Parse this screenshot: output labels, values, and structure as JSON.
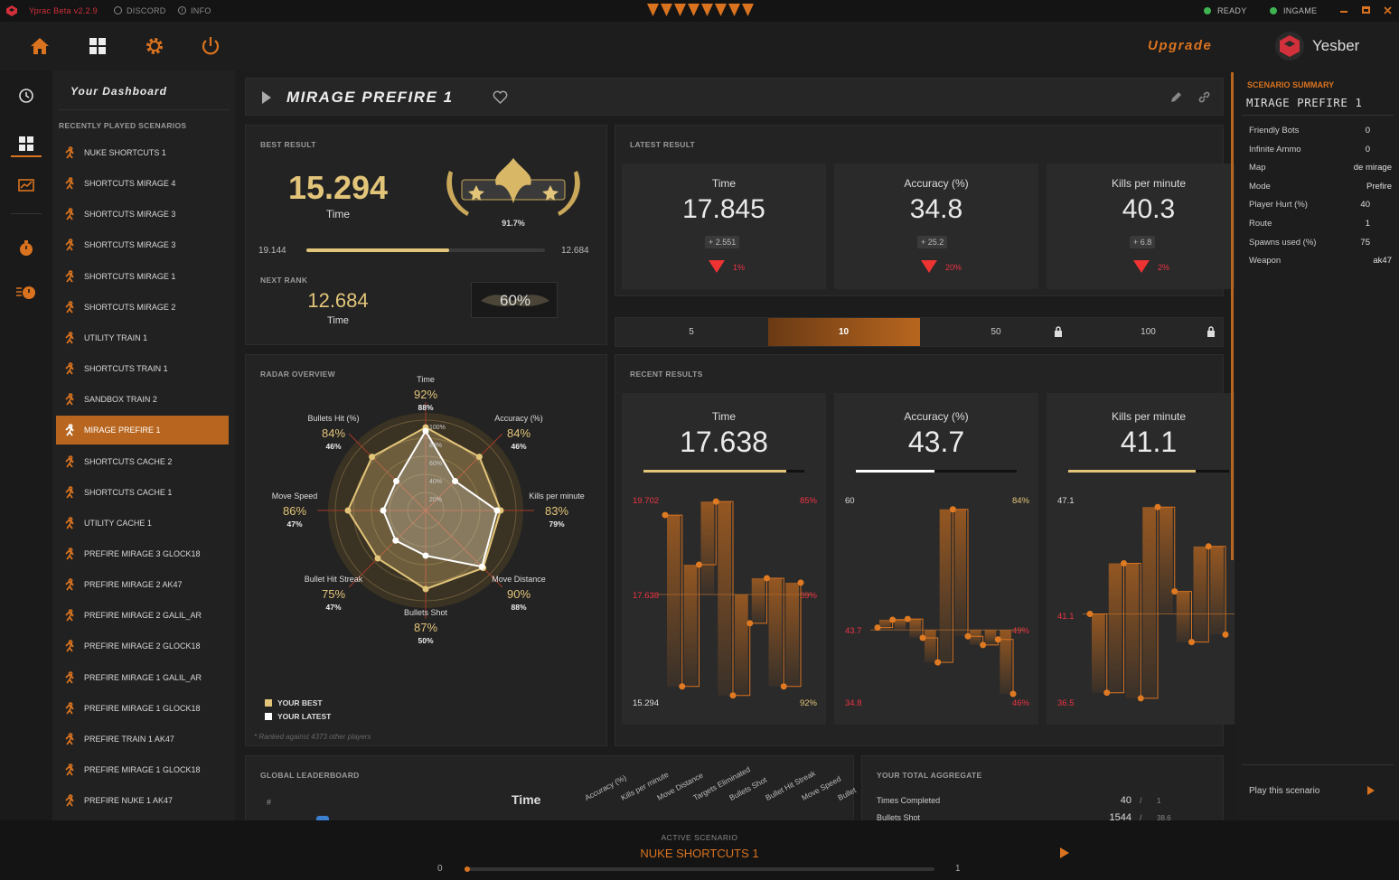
{
  "titlebar": {
    "app": "Yprac Beta v2.2.9",
    "discord": "DISCORD",
    "info": "INFO",
    "ready": "READY",
    "ingame": "INGAME"
  },
  "topnav": {
    "upgrade": "Upgrade",
    "username": "Yesber"
  },
  "sidebar": {
    "title": "Your Dashboard",
    "recent_title": "RECENTLY PLAYED SCENARIOS",
    "items": [
      "NUKE SHORTCUTS 1",
      "SHORTCUTS MIRAGE 4",
      "SHORTCUTS MIRAGE 3",
      "SHORTCUTS MIRAGE 3",
      "SHORTCUTS MIRAGE 1",
      "SHORTCUTS MIRAGE 2",
      "UTILITY TRAIN 1",
      "SHORTCUTS TRAIN 1",
      "SANDBOX TRAIN 2",
      "MIRAGE PREFIRE 1",
      "SHORTCUTS CACHE 2",
      "SHORTCUTS CACHE 1",
      "UTILITY CACHE 1",
      "PREFIRE MIRAGE 3 GLOCK18",
      "PREFIRE MIRAGE 2 AK47",
      "PREFIRE MIRAGE 2 GALIL_AR",
      "PREFIRE MIRAGE 2 GLOCK18",
      "PREFIRE MIRAGE 1 GALIL_AR",
      "PREFIRE MIRAGE 1 GLOCK18",
      "PREFIRE TRAIN 1 AK47",
      "PREFIRE MIRAGE 1 GLOCK18",
      "PREFIRE NUKE 1 AK47"
    ],
    "active_index": 9
  },
  "header": {
    "title": "MIRAGE PREFIRE 1"
  },
  "best": {
    "title": "BEST RESULT",
    "value": "15.294",
    "label": "Time",
    "badge_pct": "91.7%",
    "range_left": "19.144",
    "range_right": "12.684",
    "progress": 0.6,
    "next_rank_title": "NEXT RANK",
    "next_value": "12.684",
    "next_label": "Time",
    "next_pct": "60%"
  },
  "latest": {
    "title": "LATEST RESULT",
    "cards": [
      {
        "label": "Time",
        "value": "17.845",
        "delta": "+ 2.551",
        "pct": "1%"
      },
      {
        "label": "Accuracy (%)",
        "value": "34.8",
        "delta": "+ 25.2",
        "pct": "20%"
      },
      {
        "label": "Kills per minute",
        "value": "40.3",
        "delta": "+ 6.8",
        "pct": "2%"
      }
    ]
  },
  "tabs": {
    "items": [
      "5",
      "10",
      "50",
      "100"
    ],
    "active_index": 1
  },
  "radar": {
    "title": "RADAR OVERVIEW",
    "ring_labels": [
      "100%",
      "80%",
      "60%",
      "40%",
      "20%"
    ],
    "axes": [
      {
        "name": "Time",
        "best": "92%",
        "latest": "88%"
      },
      {
        "name": "Accuracy (%)",
        "best": "84%",
        "latest": "46%"
      },
      {
        "name": "Kills per minute",
        "best": "83%",
        "latest": "79%"
      },
      {
        "name": "Move Distance",
        "best": "90%",
        "latest": "88%"
      },
      {
        "name": "Bullets Shot",
        "best": "87%",
        "latest": "50%"
      },
      {
        "name": "Bullet Hit Streak",
        "best": "75%",
        "latest": "47%"
      },
      {
        "name": "Move Speed",
        "best": "86%",
        "latest": "47%"
      },
      {
        "name": "Bullets Hit (%)",
        "best": "84%",
        "latest": "46%"
      }
    ],
    "best_values": [
      0.92,
      0.84,
      0.83,
      0.9,
      0.87,
      0.75,
      0.86,
      0.84
    ],
    "latest_values": [
      0.88,
      0.46,
      0.79,
      0.88,
      0.5,
      0.47,
      0.47,
      0.46
    ],
    "legend_best": "YOUR BEST",
    "legend_latest": "YOUR LATEST",
    "footnote": "* Ranked against 4373 other players",
    "colors": {
      "best": "#e3c57a",
      "latest": "#ffffff"
    }
  },
  "recent": {
    "title": "RECENT RESULTS",
    "cards": [
      {
        "label": "Time",
        "value": "17.638",
        "top_left": "19.702",
        "top_right": "85%",
        "mid_left": "17.638",
        "mid_right": "89%",
        "bot_left": "15.294",
        "bot_right": "92%",
        "bar": 0.89,
        "bar_color": "#e3c57a",
        "series": [
          19.4,
          15.6,
          18.3,
          19.7,
          15.4,
          17.0,
          18.0,
          15.6,
          17.9
        ]
      },
      {
        "label": "Accuracy (%)",
        "value": "43.7",
        "top_left": "60",
        "top_right": "84%",
        "mid_left": "43.7",
        "mid_right": "49%",
        "bot_left": "34.8",
        "bot_right": "46%",
        "bar": 0.49,
        "bar_color": "#ffffff",
        "series": [
          44.0,
          45.0,
          45.1,
          42.7,
          39.6,
          59.0,
          42.9,
          41.8,
          42.5,
          35.6
        ]
      },
      {
        "label": "Kills per minute",
        "value": "41.1",
        "top_left": "47.1",
        "top_right": "",
        "mid_left": "41.1",
        "mid_right": "",
        "bot_left": "36.5",
        "bot_right": "",
        "bar": 0.79,
        "bar_color": "#e3c57a",
        "series": [
          41.1,
          36.9,
          43.8,
          36.6,
          46.8,
          42.3,
          39.6,
          44.7,
          40.0
        ]
      }
    ]
  },
  "leaderboard": {
    "title": "GLOBAL LEADERBOARD",
    "hash": "#",
    "time": "Time",
    "columns": [
      "Accuracy (%)",
      "Kills per minute",
      "Move Distance",
      "Targets Eliminated",
      "Bullets Shot",
      "Bullet Hit Streak",
      "Move Speed",
      "Bullet"
    ]
  },
  "aggregate": {
    "title": "YOUR TOTAL AGGREGATE",
    "rows": [
      {
        "label": "Times Completed",
        "value": "40",
        "sep": "/",
        "rank": "1"
      },
      {
        "label": "Bullets Shot",
        "value": "1544",
        "sep": "/",
        "rank": "38.6"
      }
    ]
  },
  "summary": {
    "title": "SCENARIO SUMMARY",
    "name": "MIRAGE PREFIRE 1",
    "rows": [
      {
        "label": "Friendly Bots",
        "value": "0"
      },
      {
        "label": "Infinite Ammo",
        "value": "0"
      },
      {
        "label": "Map",
        "value": "de mirage"
      },
      {
        "label": "Mode",
        "value": "Prefire"
      },
      {
        "label": "Player Hurt (%)",
        "value": "40"
      },
      {
        "label": "Route",
        "value": "1"
      },
      {
        "label": "Spawns used (%)",
        "value": "75"
      },
      {
        "label": "Weapon",
        "value": "ak47"
      }
    ],
    "play": "Play this scenario"
  },
  "bottom": {
    "label": "ACTIVE SCENARIO",
    "name": "NUKE SHORTCUTS 1",
    "left": "0",
    "right": "1"
  },
  "theme": {
    "accent": "#d9731f",
    "gold": "#e3c57a"
  }
}
